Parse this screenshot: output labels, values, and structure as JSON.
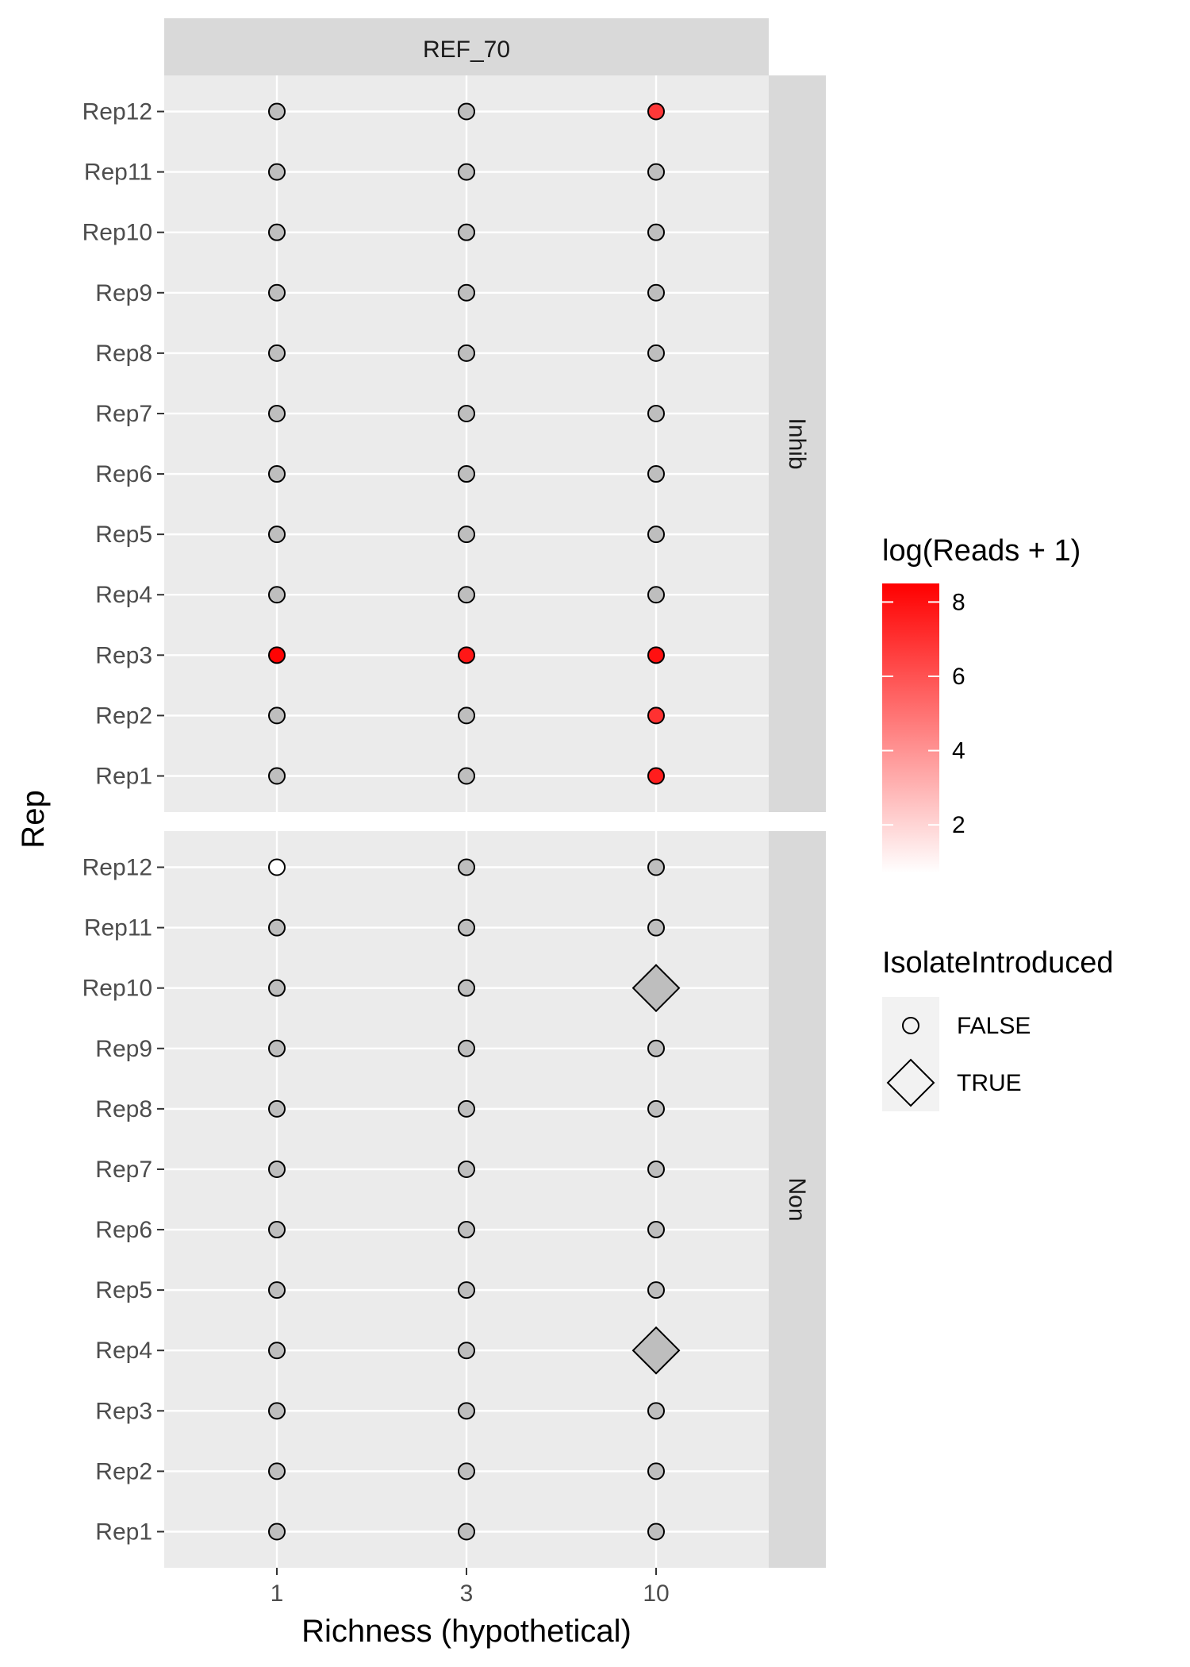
{
  "chart_data": {
    "type": "scatter",
    "facet_column": "REF_70",
    "facet_rows": [
      "Inhib",
      "Non"
    ],
    "x_categories": [
      "1",
      "3",
      "10"
    ],
    "y_categories": [
      "Rep1",
      "Rep2",
      "Rep3",
      "Rep4",
      "Rep5",
      "Rep6",
      "Rep7",
      "Rep8",
      "Rep9",
      "Rep10",
      "Rep11",
      "Rep12"
    ],
    "xlabel": "Richness (hypothetical)",
    "ylabel": "Rep",
    "grid": true,
    "color_legend": {
      "title": "log(Reads + 1)",
      "breaks": [
        2,
        4,
        6,
        8
      ],
      "range": [
        0.7,
        8.5
      ],
      "low_color": "#ffffff",
      "high_color": "#ff0000",
      "na_color": "#bebebe"
    },
    "shape_legend": {
      "title": "IsolateIntroduced",
      "entries": [
        {
          "label": "FALSE",
          "shape": "circle"
        },
        {
          "label": "TRUE",
          "shape": "diamond"
        }
      ]
    },
    "panels": [
      {
        "row": "Inhib",
        "points": [
          {
            "x": "1",
            "y": "Rep12",
            "value": null,
            "introduced": false
          },
          {
            "x": "3",
            "y": "Rep12",
            "value": null,
            "introduced": false
          },
          {
            "x": "10",
            "y": "Rep12",
            "value": 6.8,
            "introduced": false
          },
          {
            "x": "1",
            "y": "Rep11",
            "value": null,
            "introduced": false
          },
          {
            "x": "3",
            "y": "Rep11",
            "value": null,
            "introduced": false
          },
          {
            "x": "10",
            "y": "Rep11",
            "value": null,
            "introduced": false
          },
          {
            "x": "1",
            "y": "Rep10",
            "value": null,
            "introduced": false
          },
          {
            "x": "3",
            "y": "Rep10",
            "value": null,
            "introduced": false
          },
          {
            "x": "10",
            "y": "Rep10",
            "value": null,
            "introduced": false
          },
          {
            "x": "1",
            "y": "Rep9",
            "value": null,
            "introduced": false
          },
          {
            "x": "3",
            "y": "Rep9",
            "value": null,
            "introduced": false
          },
          {
            "x": "10",
            "y": "Rep9",
            "value": null,
            "introduced": false
          },
          {
            "x": "1",
            "y": "Rep8",
            "value": null,
            "introduced": false
          },
          {
            "x": "3",
            "y": "Rep8",
            "value": null,
            "introduced": false
          },
          {
            "x": "10",
            "y": "Rep8",
            "value": null,
            "introduced": false
          },
          {
            "x": "1",
            "y": "Rep7",
            "value": null,
            "introduced": false
          },
          {
            "x": "3",
            "y": "Rep7",
            "value": null,
            "introduced": false
          },
          {
            "x": "10",
            "y": "Rep7",
            "value": null,
            "introduced": false
          },
          {
            "x": "1",
            "y": "Rep6",
            "value": null,
            "introduced": false
          },
          {
            "x": "3",
            "y": "Rep6",
            "value": null,
            "introduced": false
          },
          {
            "x": "10",
            "y": "Rep6",
            "value": null,
            "introduced": false
          },
          {
            "x": "1",
            "y": "Rep5",
            "value": null,
            "introduced": false
          },
          {
            "x": "3",
            "y": "Rep5",
            "value": null,
            "introduced": false
          },
          {
            "x": "10",
            "y": "Rep5",
            "value": null,
            "introduced": false
          },
          {
            "x": "1",
            "y": "Rep4",
            "value": null,
            "introduced": false
          },
          {
            "x": "3",
            "y": "Rep4",
            "value": null,
            "introduced": false
          },
          {
            "x": "10",
            "y": "Rep4",
            "value": null,
            "introduced": false
          },
          {
            "x": "1",
            "y": "Rep3",
            "value": 8.4,
            "introduced": false
          },
          {
            "x": "3",
            "y": "Rep3",
            "value": 7.8,
            "introduced": false
          },
          {
            "x": "10",
            "y": "Rep3",
            "value": 8.0,
            "introduced": false
          },
          {
            "x": "1",
            "y": "Rep2",
            "value": null,
            "introduced": false
          },
          {
            "x": "3",
            "y": "Rep2",
            "value": null,
            "introduced": false
          },
          {
            "x": "10",
            "y": "Rep2",
            "value": 7.0,
            "introduced": false
          },
          {
            "x": "1",
            "y": "Rep1",
            "value": null,
            "introduced": false
          },
          {
            "x": "3",
            "y": "Rep1",
            "value": null,
            "introduced": false
          },
          {
            "x": "10",
            "y": "Rep1",
            "value": 7.6,
            "introduced": false
          }
        ]
      },
      {
        "row": "Non",
        "points": [
          {
            "x": "1",
            "y": "Rep12",
            "value": 0.7,
            "introduced": false
          },
          {
            "x": "3",
            "y": "Rep12",
            "value": null,
            "introduced": false
          },
          {
            "x": "10",
            "y": "Rep12",
            "value": null,
            "introduced": false
          },
          {
            "x": "1",
            "y": "Rep11",
            "value": null,
            "introduced": false
          },
          {
            "x": "3",
            "y": "Rep11",
            "value": null,
            "introduced": false
          },
          {
            "x": "10",
            "y": "Rep11",
            "value": null,
            "introduced": false
          },
          {
            "x": "1",
            "y": "Rep10",
            "value": null,
            "introduced": false
          },
          {
            "x": "3",
            "y": "Rep10",
            "value": null,
            "introduced": false
          },
          {
            "x": "10",
            "y": "Rep10",
            "value": null,
            "introduced": true
          },
          {
            "x": "1",
            "y": "Rep9",
            "value": null,
            "introduced": false
          },
          {
            "x": "3",
            "y": "Rep9",
            "value": null,
            "introduced": false
          },
          {
            "x": "10",
            "y": "Rep9",
            "value": null,
            "introduced": false
          },
          {
            "x": "1",
            "y": "Rep8",
            "value": null,
            "introduced": false
          },
          {
            "x": "3",
            "y": "Rep8",
            "value": null,
            "introduced": false
          },
          {
            "x": "10",
            "y": "Rep8",
            "value": null,
            "introduced": false
          },
          {
            "x": "1",
            "y": "Rep7",
            "value": null,
            "introduced": false
          },
          {
            "x": "3",
            "y": "Rep7",
            "value": null,
            "introduced": false
          },
          {
            "x": "10",
            "y": "Rep7",
            "value": null,
            "introduced": false
          },
          {
            "x": "1",
            "y": "Rep6",
            "value": null,
            "introduced": false
          },
          {
            "x": "3",
            "y": "Rep6",
            "value": null,
            "introduced": false
          },
          {
            "x": "10",
            "y": "Rep6",
            "value": null,
            "introduced": false
          },
          {
            "x": "1",
            "y": "Rep5",
            "value": null,
            "introduced": false
          },
          {
            "x": "3",
            "y": "Rep5",
            "value": null,
            "introduced": false
          },
          {
            "x": "10",
            "y": "Rep5",
            "value": null,
            "introduced": false
          },
          {
            "x": "1",
            "y": "Rep4",
            "value": null,
            "introduced": false
          },
          {
            "x": "3",
            "y": "Rep4",
            "value": null,
            "introduced": false
          },
          {
            "x": "10",
            "y": "Rep4",
            "value": null,
            "introduced": true
          },
          {
            "x": "1",
            "y": "Rep3",
            "value": null,
            "introduced": false
          },
          {
            "x": "3",
            "y": "Rep3",
            "value": null,
            "introduced": false
          },
          {
            "x": "10",
            "y": "Rep3",
            "value": null,
            "introduced": false
          },
          {
            "x": "1",
            "y": "Rep2",
            "value": null,
            "introduced": false
          },
          {
            "x": "3",
            "y": "Rep2",
            "value": null,
            "introduced": false
          },
          {
            "x": "10",
            "y": "Rep2",
            "value": null,
            "introduced": false
          },
          {
            "x": "1",
            "y": "Rep1",
            "value": null,
            "introduced": false
          },
          {
            "x": "3",
            "y": "Rep1",
            "value": null,
            "introduced": false
          },
          {
            "x": "10",
            "y": "Rep1",
            "value": null,
            "introduced": false
          }
        ]
      }
    ]
  }
}
